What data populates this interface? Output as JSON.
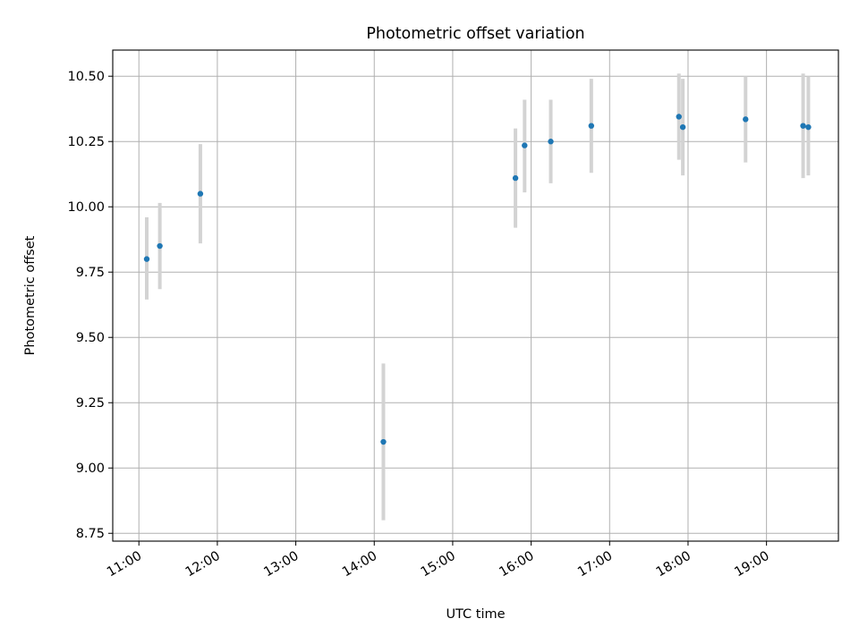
{
  "chart_data": {
    "type": "scatter",
    "title": "Photometric offset variation",
    "xlabel": "UTC time",
    "ylabel": "Photometric offset",
    "xlim": [
      "10:40",
      "19:55"
    ],
    "ylim": [
      8.72,
      10.6
    ],
    "x_ticks": [
      "11:00",
      "12:00",
      "13:00",
      "14:00",
      "15:00",
      "16:00",
      "17:00",
      "18:00",
      "19:00"
    ],
    "y_ticks": [
      8.75,
      9.0,
      9.25,
      9.5,
      9.75,
      10.0,
      10.25,
      10.5
    ],
    "y_tick_labels": [
      "8.75",
      "9.00",
      "9.25",
      "9.50",
      "9.75",
      "10.00",
      "10.25",
      "10.50"
    ],
    "grid": true,
    "points": [
      {
        "time": "11:06",
        "y": 9.8,
        "err_low": 9.645,
        "err_high": 9.96
      },
      {
        "time": "11:16",
        "y": 9.85,
        "err_low": 9.685,
        "err_high": 10.015
      },
      {
        "time": "11:47",
        "y": 10.05,
        "err_low": 9.86,
        "err_high": 10.24
      },
      {
        "time": "14:07",
        "y": 9.1,
        "err_low": 8.8,
        "err_high": 9.4
      },
      {
        "time": "15:48",
        "y": 10.11,
        "err_low": 9.92,
        "err_high": 10.3
      },
      {
        "time": "15:55",
        "y": 10.235,
        "err_low": 10.055,
        "err_high": 10.41
      },
      {
        "time": "16:15",
        "y": 10.25,
        "err_low": 10.09,
        "err_high": 10.41
      },
      {
        "time": "16:46",
        "y": 10.31,
        "err_low": 10.13,
        "err_high": 10.49
      },
      {
        "time": "17:53",
        "y": 10.345,
        "err_low": 10.18,
        "err_high": 10.51
      },
      {
        "time": "17:56",
        "y": 10.305,
        "err_low": 10.12,
        "err_high": 10.49
      },
      {
        "time": "18:44",
        "y": 10.335,
        "err_low": 10.17,
        "err_high": 10.5
      },
      {
        "time": "19:28",
        "y": 10.31,
        "err_low": 10.11,
        "err_high": 10.51
      },
      {
        "time": "19:32",
        "y": 10.305,
        "err_low": 10.12,
        "err_high": 10.5
      }
    ],
    "colors": {
      "marker": "#1f77b4",
      "errorbar": "#d3d3d3",
      "grid": "#b0b0b0",
      "axes": "#000000"
    }
  }
}
